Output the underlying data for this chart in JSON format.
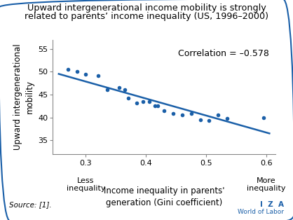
{
  "title_line1": "Upward intergenerational income mobility is strongly",
  "title_line2": "related to parents’ income inequality (US, 1996–2000)",
  "xlabel": "Income inequality in parents'\ngeneration (Gini coefficient)",
  "ylabel": "Upward intergenerational\nmobility",
  "x_label_less": "Less\ninequality",
  "x_label_more": "More\ninequality",
  "source_text": "Source: [1].",
  "correlation_text": "Correlation = –0.578",
  "dot_color": "#1a5fa8",
  "line_color": "#1a5fa8",
  "scatter_x": [
    0.27,
    0.285,
    0.3,
    0.32,
    0.335,
    0.355,
    0.365,
    0.37,
    0.385,
    0.395,
    0.405,
    0.415,
    0.42,
    0.43,
    0.445,
    0.46,
    0.475,
    0.49,
    0.505,
    0.52,
    0.535,
    0.595
  ],
  "scatter_y": [
    50.5,
    50.0,
    49.5,
    49.1,
    46.0,
    46.5,
    46.0,
    44.2,
    43.2,
    43.5,
    43.5,
    42.5,
    42.5,
    41.5,
    40.8,
    40.5,
    40.8,
    39.5,
    39.3,
    40.5,
    39.8,
    40.0
  ],
  "trendline_x": [
    0.255,
    0.605
  ],
  "trendline_y": [
    49.5,
    36.5
  ],
  "xlim": [
    0.245,
    0.615
  ],
  "ylim": [
    32,
    57
  ],
  "xticks": [
    0.3,
    0.4,
    0.5,
    0.6
  ],
  "yticks": [
    35,
    40,
    45,
    50,
    55
  ],
  "border_color": "#1a5fa8",
  "background_color": "#ffffff",
  "iza_color": "#1a5fa8",
  "title_fontsize": 9.2,
  "axis_label_fontsize": 8.5,
  "tick_fontsize": 8,
  "annotation_fontsize": 9
}
